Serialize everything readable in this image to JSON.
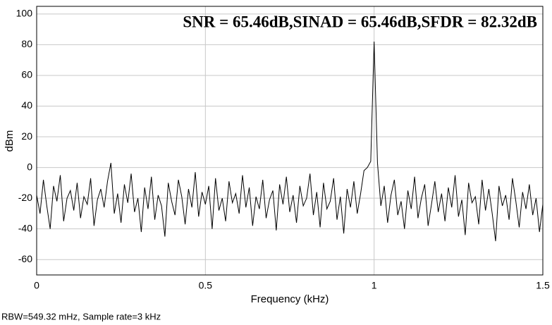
{
  "chart_data": {
    "type": "line",
    "annotation": "SNR = 65.46dB,SINAD = 65.46dB,SFDR = 82.32dB",
    "footer": "RBW=549.32 mHz, Sample rate=3 kHz",
    "xlabel": "Frequency (kHz)",
    "ylabel": "dBm",
    "xlim": [
      0,
      1.5
    ],
    "xticks": [
      0,
      0.5,
      1,
      1.5
    ],
    "ylim": [
      -70,
      105
    ],
    "yticks": [
      -60,
      -40,
      -20,
      0,
      20,
      40,
      60,
      80,
      100
    ],
    "grid": true,
    "x": [
      0,
      0.01,
      0.02,
      0.03,
      0.04,
      0.05,
      0.06,
      0.07,
      0.08,
      0.09,
      0.1,
      0.11,
      0.12,
      0.13,
      0.14,
      0.15,
      0.16,
      0.17,
      0.18,
      0.19,
      0.2,
      0.21,
      0.22,
      0.23,
      0.24,
      0.25,
      0.26,
      0.27,
      0.28,
      0.29,
      0.3,
      0.31,
      0.32,
      0.33,
      0.34,
      0.35,
      0.36,
      0.37,
      0.38,
      0.39,
      0.4,
      0.41,
      0.42,
      0.43,
      0.44,
      0.45,
      0.46,
      0.47,
      0.48,
      0.49,
      0.5,
      0.51,
      0.52,
      0.53,
      0.54,
      0.55,
      0.56,
      0.57,
      0.58,
      0.59,
      0.6,
      0.61,
      0.62,
      0.63,
      0.64,
      0.65,
      0.66,
      0.67,
      0.68,
      0.69,
      0.7,
      0.71,
      0.72,
      0.73,
      0.74,
      0.75,
      0.76,
      0.77,
      0.78,
      0.79,
      0.8,
      0.81,
      0.82,
      0.83,
      0.84,
      0.85,
      0.86,
      0.87,
      0.88,
      0.89,
      0.9,
      0.91,
      0.92,
      0.93,
      0.94,
      0.95,
      0.96,
      0.97,
      0.98,
      0.99,
      1,
      1.01,
      1.02,
      1.03,
      1.04,
      1.05,
      1.06,
      1.07,
      1.08,
      1.09,
      1.1,
      1.11,
      1.12,
      1.13,
      1.14,
      1.15,
      1.16,
      1.17,
      1.18,
      1.19,
      1.2,
      1.21,
      1.22,
      1.23,
      1.24,
      1.25,
      1.26,
      1.27,
      1.28,
      1.29,
      1.3,
      1.31,
      1.32,
      1.33,
      1.34,
      1.35,
      1.36,
      1.37,
      1.38,
      1.39,
      1.4,
      1.41,
      1.42,
      1.43,
      1.44,
      1.45,
      1.46,
      1.47,
      1.48,
      1.49,
      1.5
    ],
    "series": [
      {
        "color": "#000000",
        "values": [
          -18,
          -30,
          -8,
          -25,
          -40,
          -12,
          -22,
          -5,
          -35,
          -20,
          -15,
          -28,
          -10,
          -33,
          -19,
          -24,
          -7,
          -38,
          -21,
          -14,
          -26,
          -9,
          3,
          -30,
          -17,
          -36,
          -11,
          -23,
          -4,
          -29,
          -20,
          -42,
          -13,
          -27,
          -6,
          -34,
          -18,
          -25,
          -45,
          -10,
          -22,
          -31,
          -8,
          -19,
          -37,
          -14,
          -26,
          -3,
          -32,
          -16,
          -24,
          -12,
          -40,
          -7,
          -28,
          -20,
          -35,
          -9,
          -23,
          -17,
          -30,
          -5,
          -26,
          -13,
          -38,
          -19,
          -27,
          -8,
          -33,
          -21,
          -15,
          -41,
          -11,
          -24,
          -6,
          -29,
          -18,
          -36,
          -12,
          -25,
          -20,
          -4,
          -31,
          -16,
          -39,
          -10,
          -27,
          -22,
          -7,
          -34,
          -19,
          -43,
          -14,
          -26,
          -9,
          -30,
          -17,
          -2,
          0,
          4,
          82,
          3,
          -25,
          -12,
          -36,
          -18,
          -8,
          -31,
          -22,
          -40,
          -15,
          -27,
          -6,
          -33,
          -20,
          -11,
          -38,
          -24,
          -9,
          -29,
          -17,
          -35,
          -13,
          -26,
          -5,
          -32,
          -21,
          -44,
          -10,
          -23,
          -19,
          -37,
          -8,
          -28,
          -14,
          -30,
          -48,
          -12,
          -25,
          -18,
          -34,
          -7,
          -22,
          -39,
          -16,
          -27,
          -11,
          -31,
          -20,
          -42,
          -24
        ]
      }
    ]
  }
}
